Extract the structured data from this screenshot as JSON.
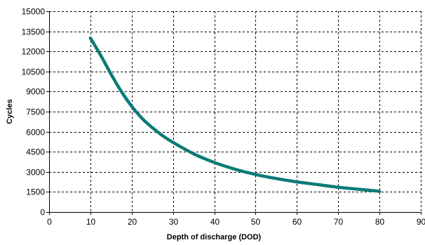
{
  "chart_data": {
    "type": "line",
    "title": "",
    "xlabel": "Depth of discharge (DOD)",
    "ylabel": "Cycles",
    "xlim": [
      0,
      90
    ],
    "ylim": [
      0,
      15000
    ],
    "grid": true,
    "grid_style": "dashed",
    "x_ticks": [
      0,
      10,
      20,
      30,
      40,
      50,
      60,
      70,
      80,
      90
    ],
    "x_tick_labels": [
      "0",
      "10",
      "20",
      "30",
      "40",
      "50",
      "60",
      "70",
      "80",
      "90"
    ],
    "y_ticks": [
      0,
      1500,
      3000,
      4500,
      6000,
      7500,
      9000,
      10500,
      12000,
      13500,
      15000
    ],
    "y_tick_labels": [
      "0",
      "1500",
      "3000",
      "4500",
      "6000",
      "7500",
      "9000",
      "10500",
      "12000",
      "13500",
      "15000"
    ],
    "series": [
      {
        "color": "#0b7b76",
        "x": [
          10,
          12.5,
          15,
          17.5,
          20,
          22.5,
          25,
          27.5,
          30,
          35,
          40,
          45,
          50,
          55,
          60,
          65,
          70,
          75,
          80
        ],
        "y": [
          13000,
          11700,
          10300,
          9000,
          7900,
          7000,
          6300,
          5700,
          5200,
          4350,
          3700,
          3200,
          2800,
          2500,
          2250,
          2050,
          1850,
          1700,
          1550
        ]
      }
    ]
  }
}
